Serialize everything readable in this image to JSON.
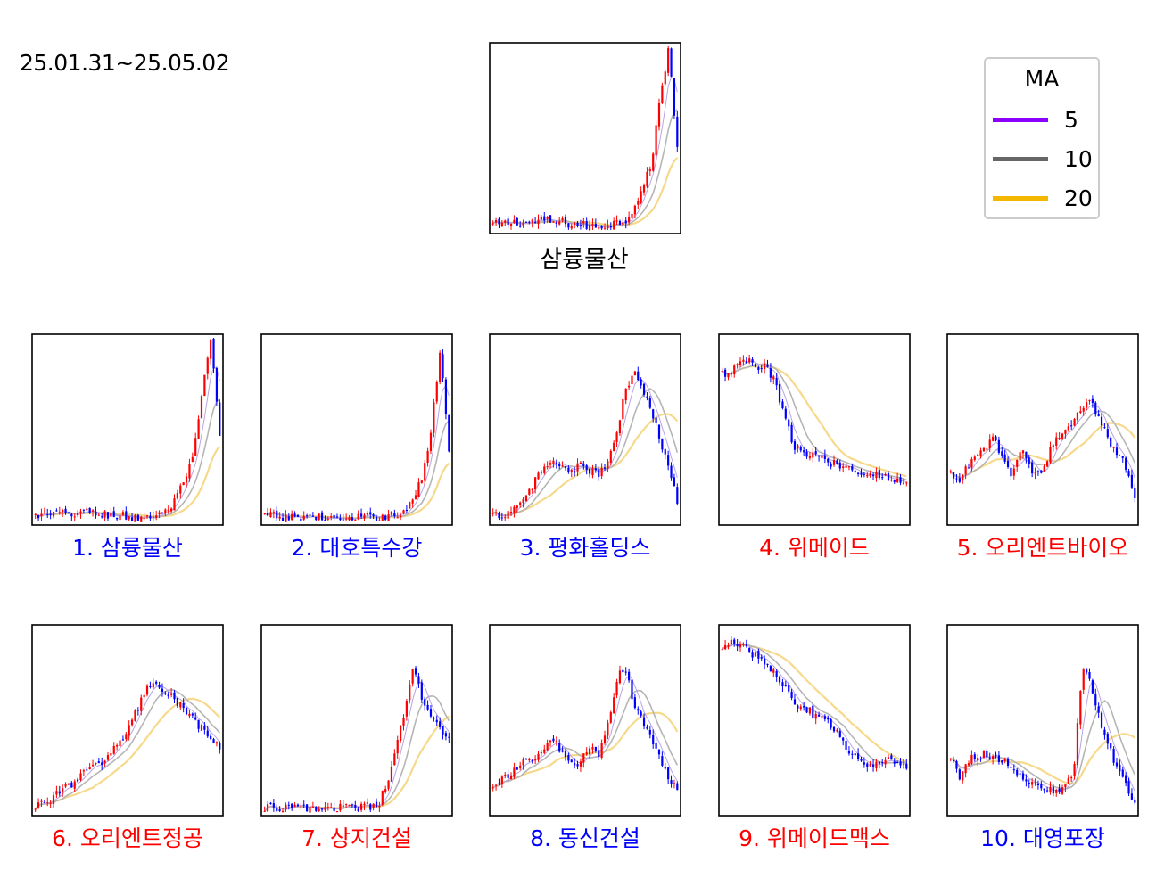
{
  "date_range": "25.01.31~25.05.02",
  "legend": {
    "title": "MA",
    "items": [
      {
        "label": "5",
        "color": "#8b00ff"
      },
      {
        "label": "10",
        "color": "#666666"
      },
      {
        "label": "20",
        "color": "#f5b800"
      }
    ]
  },
  "colors": {
    "up": "#ff0000",
    "down": "#0000ff",
    "ma5": "#b9a3e8",
    "ma10": "#b5b5b5",
    "ma20": "#f6d98a",
    "title_up": "#ff0000",
    "title_down": "#0000ff"
  },
  "main": {
    "title": "삼륭물산"
  },
  "chart_data": [
    {
      "type": "candlestick",
      "title": "1. 삼륭물산",
      "trend": "down",
      "levels": [
        0.03,
        0.03,
        0.04,
        0.04,
        0.04,
        0.05,
        0.05,
        0.04,
        0.04,
        0.03,
        0.03,
        0.02,
        0.02,
        0.03,
        0.04,
        0.05,
        0.12,
        0.22,
        0.35,
        0.7,
        1.0,
        0.45
      ]
    },
    {
      "type": "candlestick",
      "title": "2. 대호특수강",
      "trend": "down",
      "levels": [
        0.03,
        0.03,
        0.02,
        0.02,
        0.02,
        0.03,
        0.02,
        0.02,
        0.01,
        0.01,
        0.01,
        0.02,
        0.02,
        0.03,
        0.03,
        0.04,
        0.06,
        0.12,
        0.25,
        0.5,
        0.95,
        0.4
      ]
    },
    {
      "type": "candlestick",
      "title": "3. 평화홀딩스",
      "trend": "down",
      "levels": [
        0.03,
        0.04,
        0.05,
        0.08,
        0.15,
        0.25,
        0.3,
        0.32,
        0.3,
        0.28,
        0.3,
        0.28,
        0.26,
        0.3,
        0.45,
        0.7,
        0.82,
        0.72,
        0.6,
        0.45,
        0.3,
        0.1
      ]
    },
    {
      "type": "candlestick",
      "title": "4. 위메이드",
      "trend": "up",
      "levels": [
        0.8,
        0.82,
        0.85,
        0.88,
        0.82,
        0.85,
        0.75,
        0.6,
        0.42,
        0.38,
        0.36,
        0.35,
        0.33,
        0.31,
        0.3,
        0.29,
        0.27,
        0.25,
        0.26,
        0.24,
        0.22,
        0.2
      ]
    },
    {
      "type": "candlestick",
      "title": "5. 오리엔트바이오",
      "trend": "up",
      "levels": [
        0.25,
        0.22,
        0.3,
        0.35,
        0.4,
        0.45,
        0.35,
        0.25,
        0.4,
        0.3,
        0.25,
        0.35,
        0.45,
        0.5,
        0.55,
        0.6,
        0.65,
        0.55,
        0.45,
        0.38,
        0.3,
        0.15
      ]
    },
    {
      "type": "candlestick",
      "title": "6. 오리엔트정공",
      "trend": "up",
      "levels": [
        0.04,
        0.05,
        0.08,
        0.12,
        0.15,
        0.2,
        0.22,
        0.25,
        0.3,
        0.35,
        0.4,
        0.5,
        0.6,
        0.7,
        0.68,
        0.65,
        0.6,
        0.55,
        0.5,
        0.45,
        0.4,
        0.35
      ]
    },
    {
      "type": "candlestick",
      "title": "7. 상지건설",
      "trend": "up",
      "levels": [
        0.02,
        0.02,
        0.02,
        0.02,
        0.02,
        0.02,
        0.02,
        0.02,
        0.02,
        0.02,
        0.02,
        0.02,
        0.03,
        0.05,
        0.15,
        0.35,
        0.55,
        0.8,
        0.6,
        0.5,
        0.45,
        0.4
      ]
    },
    {
      "type": "candlestick",
      "title": "8. 동신건설",
      "trend": "down",
      "levels": [
        0.15,
        0.18,
        0.2,
        0.25,
        0.28,
        0.3,
        0.35,
        0.4,
        0.3,
        0.25,
        0.28,
        0.35,
        0.3,
        0.45,
        0.7,
        0.8,
        0.6,
        0.5,
        0.4,
        0.3,
        0.2,
        0.1
      ]
    },
    {
      "type": "candlestick",
      "title": "9. 위메이드맥스",
      "trend": "up",
      "levels": [
        0.9,
        0.92,
        0.9,
        0.88,
        0.85,
        0.8,
        0.75,
        0.7,
        0.6,
        0.55,
        0.55,
        0.5,
        0.5,
        0.45,
        0.35,
        0.3,
        0.25,
        0.25,
        0.28,
        0.3,
        0.28,
        0.25
      ]
    },
    {
      "type": "candlestick",
      "title": "10. 대영포장",
      "trend": "down",
      "levels": [
        0.3,
        0.2,
        0.28,
        0.3,
        0.32,
        0.3,
        0.28,
        0.22,
        0.2,
        0.18,
        0.15,
        0.12,
        0.1,
        0.15,
        0.2,
        0.8,
        0.7,
        0.5,
        0.35,
        0.25,
        0.15,
        0.05
      ]
    }
  ]
}
